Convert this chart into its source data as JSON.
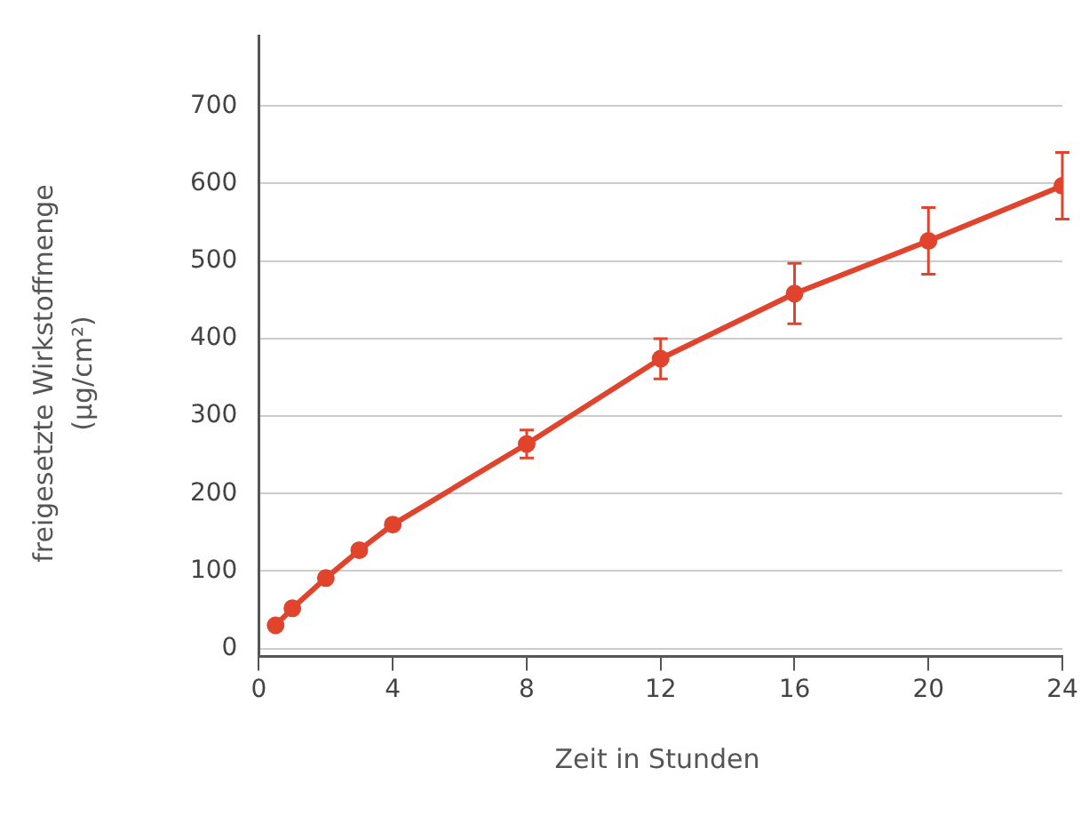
{
  "chart_data": {
    "type": "line",
    "xlabel": "Zeit in Stunden",
    "ylabel": "freigesetzte Wirkstoffmenge (µg/cm²)",
    "x": [
      0.5,
      1,
      2,
      3,
      4,
      8,
      12,
      16,
      20,
      24
    ],
    "series": [
      {
        "color": "#e0442c",
        "values": [
          30,
          52,
          91,
          127,
          160,
          264,
          374,
          458,
          526,
          597
        ],
        "errors": [
          null,
          null,
          null,
          null,
          null,
          18,
          26,
          39,
          43,
          43
        ]
      }
    ],
    "xlim": [
      0,
      24
    ],
    "xticks": [
      0,
      4,
      8,
      12,
      16,
      20,
      24
    ],
    "ylim": [
      -10,
      790
    ],
    "yticks": [
      0,
      100,
      200,
      300,
      400,
      500,
      600,
      700
    ],
    "grid": "y",
    "marker": "circle",
    "line_style": "solid",
    "legend": false
  }
}
